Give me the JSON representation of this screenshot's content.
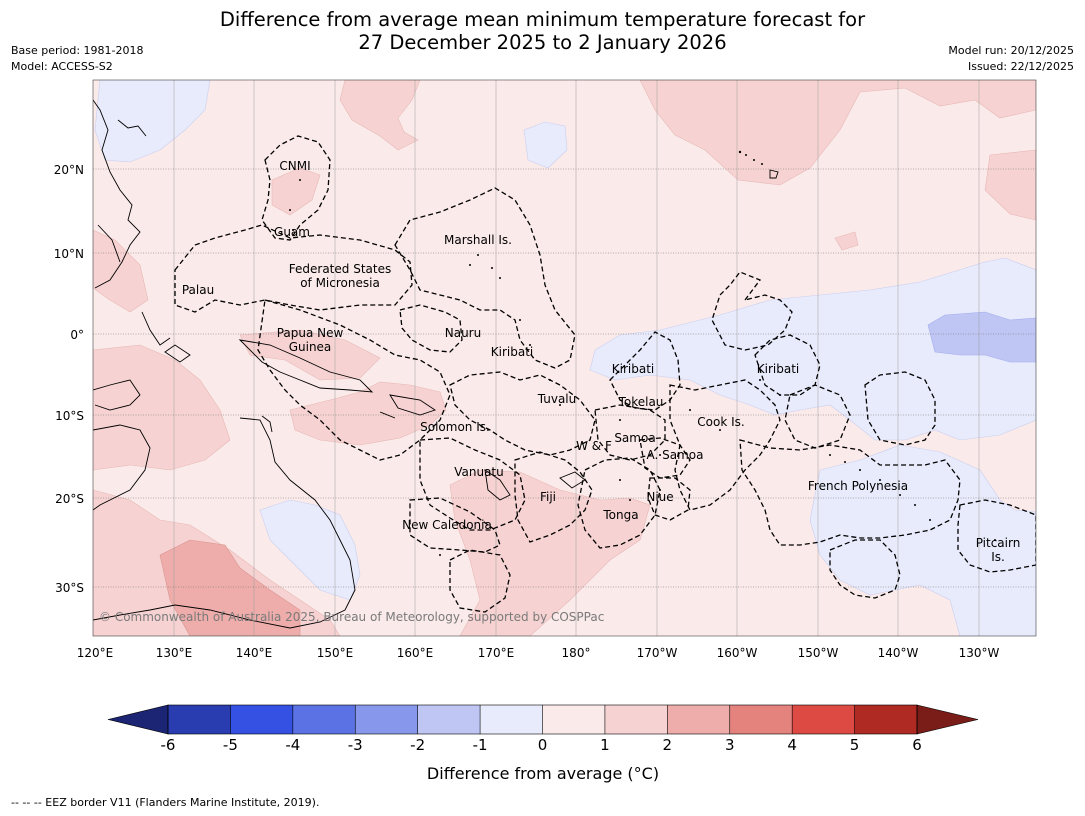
{
  "title_line1": "Difference from average mean minimum temperature forecast for",
  "title_line2": "27 December 2025 to 2 January 2026",
  "meta_left": [
    "Base period: 1981-2018",
    "Model: ACCESS-S2"
  ],
  "meta_right": [
    "Model run: 20/12/2025",
    "Issued: 22/12/2025"
  ],
  "lon_labels": [
    "120°E",
    "130°E",
    "140°E",
    "150°E",
    "160°E",
    "170°E",
    "180°",
    "170°W",
    "160°W",
    "150°W",
    "140°W",
    "130°W"
  ],
  "lat_labels": [
    "20°N",
    "10°N",
    "0°",
    "10°S",
    "20°S",
    "30°S"
  ],
  "regions": [
    {
      "name": "CNMI",
      "lines": [
        "CNMI"
      ]
    },
    {
      "name": "Guam",
      "lines": [
        "Guam"
      ]
    },
    {
      "name": "Marshall Is.",
      "lines": [
        "Marshall Is."
      ]
    },
    {
      "name": "Federated States of Micronesia",
      "lines": [
        "Federated States",
        "of Micronesia"
      ]
    },
    {
      "name": "Palau",
      "lines": [
        "Palau"
      ]
    },
    {
      "name": "Papua New Guinea",
      "lines": [
        "Papua New",
        "Guinea"
      ]
    },
    {
      "name": "Nauru",
      "lines": [
        "Nauru"
      ]
    },
    {
      "name": "Kiribati (Gilbert)",
      "lines": [
        "Kiribati"
      ]
    },
    {
      "name": "Kiribati (Phoenix)",
      "lines": [
        "Kiribati"
      ]
    },
    {
      "name": "Kiribati (Line)",
      "lines": [
        "Kiribati"
      ]
    },
    {
      "name": "Tuvalu",
      "lines": [
        "Tuvalu"
      ]
    },
    {
      "name": "Tokelau",
      "lines": [
        "Tokelau"
      ]
    },
    {
      "name": "Cook Is.",
      "lines": [
        "Cook Is."
      ]
    },
    {
      "name": "Solomon Is.",
      "lines": [
        "Solomon Is."
      ]
    },
    {
      "name": "Samoa",
      "lines": [
        "Samoa"
      ]
    },
    {
      "name": "W & F",
      "lines": [
        "W & F"
      ]
    },
    {
      "name": "A. Samoa",
      "lines": [
        "A. Samoa"
      ]
    },
    {
      "name": "Vanuatu",
      "lines": [
        "Vanuatu"
      ]
    },
    {
      "name": "Fiji",
      "lines": [
        "Fiji"
      ]
    },
    {
      "name": "Niue",
      "lines": [
        "Niue"
      ]
    },
    {
      "name": "French Polynesia",
      "lines": [
        "French Polynesia"
      ]
    },
    {
      "name": "Tonga",
      "lines": [
        "Tonga"
      ]
    },
    {
      "name": "New Caledonia",
      "lines": [
        "New Caledonia"
      ]
    },
    {
      "name": "Pitcairn Is.",
      "lines": [
        "Pitcairn",
        "Is."
      ]
    }
  ],
  "copyright": "© Commonwealth of Australia 2025, Bureau of Meteorology, supported by COSPPac",
  "colorbar": {
    "ticks": [
      "-6",
      "-5",
      "-4",
      "-3",
      "-2",
      "-1",
      "0",
      "1",
      "2",
      "3",
      "4",
      "5",
      "6"
    ],
    "colors": [
      "#2a3db0",
      "#3551e3",
      "#5a72e3",
      "#8797eb",
      "#bfc6f4",
      "#e8ebfb",
      "#fbeaea",
      "#f6d3d2",
      "#eeadaa",
      "#e4827d",
      "#dc4a43",
      "#af2a22"
    ],
    "under_color": "#1c2573",
    "over_color": "#7a1c18",
    "label": "Difference from average (°C)"
  },
  "footer": "--  --  -- EEZ border V11 (Flanders Marine Institute, 2019)."
}
